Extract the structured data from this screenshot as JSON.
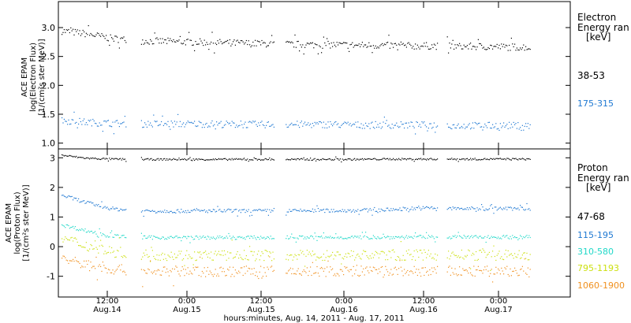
{
  "chart_data": [
    {
      "type": "scatter",
      "panel": "electron",
      "ylabel_lines": [
        "ACE EPAM",
        "log(Electron Flux)",
        "[1/(cm²s ster MeV)]"
      ],
      "ylim": [
        0.9,
        3.45
      ],
      "yticks": [
        1.0,
        1.5,
        2.0,
        2.5,
        3.0
      ],
      "legend_title_lines": [
        "Electron",
        "Energy ran",
        "[keV]"
      ],
      "series": [
        {
          "name": "38-53",
          "color": "#000000",
          "values": [
            2.95,
            2.9,
            2.82,
            2.78,
            2.77,
            2.76,
            2.75,
            2.74,
            2.73,
            2.72,
            2.71,
            2.71,
            2.7,
            2.7,
            2.69,
            2.69,
            2.68,
            2.68,
            2.67,
            2.67
          ]
        },
        {
          "name": "175-315",
          "color": "#1e78d2",
          "values": [
            1.4,
            1.37,
            1.35,
            1.34,
            1.34,
            1.34,
            1.34,
            1.33,
            1.33,
            1.33,
            1.33,
            1.33,
            1.32,
            1.32,
            1.32,
            1.32,
            1.31,
            1.31,
            1.31,
            1.31
          ]
        }
      ]
    },
    {
      "type": "scatter",
      "panel": "proton",
      "ylabel_lines": [
        "ACE EPAM",
        "log(Proton Flux)",
        "[1/(cm²s ster MeV)]"
      ],
      "ylim": [
        -1.7,
        3.3
      ],
      "yticks": [
        -1,
        0,
        1,
        2,
        3
      ],
      "legend_title_lines": [
        "Proton",
        "Energy ran",
        "[keV]"
      ],
      "series": [
        {
          "name": "47-68",
          "color": "#000000",
          "values": [
            3.1,
            3.0,
            2.97,
            2.96,
            2.96,
            2.96,
            2.96,
            2.96,
            2.96,
            2.96,
            2.96,
            2.96,
            2.96,
            2.97,
            2.97,
            2.97,
            2.97,
            2.97,
            2.97,
            2.97
          ]
        },
        {
          "name": "115-195",
          "color": "#1e78d2",
          "values": [
            1.75,
            1.5,
            1.3,
            1.22,
            1.22,
            1.22,
            1.22,
            1.22,
            1.22,
            1.22,
            1.23,
            1.23,
            1.24,
            1.25,
            1.3,
            1.32,
            1.3,
            1.3,
            1.3,
            1.3
          ]
        },
        {
          "name": "310-580",
          "color": "#20d8c8",
          "values": [
            0.75,
            0.55,
            0.38,
            0.33,
            0.32,
            0.32,
            0.32,
            0.32,
            0.32,
            0.32,
            0.33,
            0.33,
            0.33,
            0.33,
            0.34,
            0.34,
            0.34,
            0.34,
            0.34,
            0.34
          ]
        },
        {
          "name": "795-1193",
          "color": "#cce010",
          "values": [
            0.3,
            0.05,
            -0.15,
            -0.25,
            -0.27,
            -0.27,
            -0.28,
            -0.28,
            -0.28,
            -0.28,
            -0.28,
            -0.28,
            -0.27,
            -0.27,
            -0.27,
            -0.27,
            -0.27,
            -0.27,
            -0.27,
            -0.27
          ]
        },
        {
          "name": "1060-1900",
          "color": "#f0901e",
          "values": [
            -0.4,
            -0.6,
            -0.75,
            -0.8,
            -0.82,
            -0.82,
            -0.82,
            -0.82,
            -0.82,
            -0.82,
            -0.82,
            -0.82,
            -0.82,
            -0.82,
            -0.82,
            -0.82,
            -0.82,
            -0.82,
            -0.82,
            -0.82
          ]
        }
      ]
    }
  ],
  "xaxis": {
    "ticks": [
      {
        "time": "12:00",
        "date": "Aug.14"
      },
      {
        "time": "0:00",
        "date": "Aug.15"
      },
      {
        "time": "12:00",
        "date": "Aug.15"
      },
      {
        "time": "0:00",
        "date": "Aug.16"
      },
      {
        "time": "12:00",
        "date": "Aug.16"
      },
      {
        "time": "0:00",
        "date": "Aug.17"
      }
    ],
    "label": "hours:minutes, Aug. 14, 2011 - Aug. 17, 2011"
  }
}
